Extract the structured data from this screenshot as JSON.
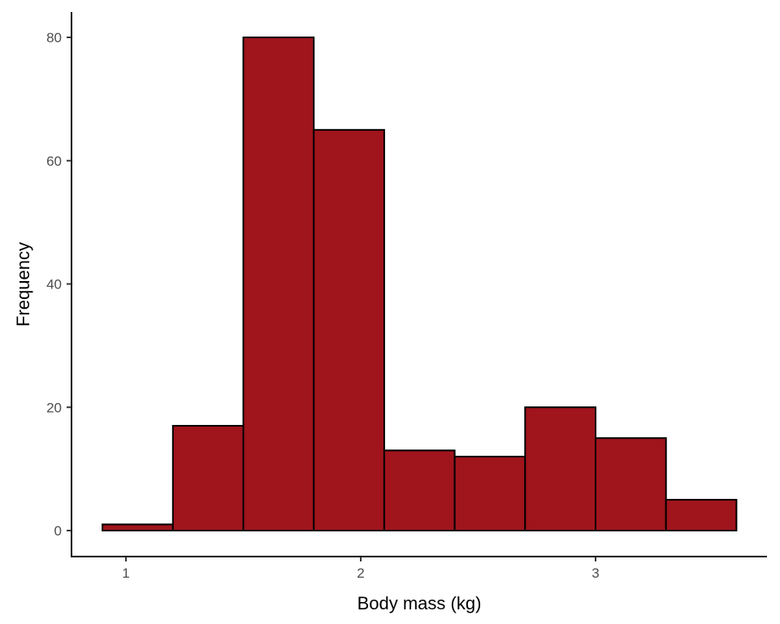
{
  "chart_data": {
    "type": "bar",
    "subtype": "histogram",
    "title": "",
    "xlabel": "Body mass (kg)",
    "ylabel": "Frequency",
    "bins": [
      {
        "start": 0.9,
        "end": 1.2,
        "count": 1
      },
      {
        "start": 1.2,
        "end": 1.5,
        "count": 17
      },
      {
        "start": 1.5,
        "end": 1.8,
        "count": 80
      },
      {
        "start": 1.8,
        "end": 2.1,
        "count": 65
      },
      {
        "start": 2.1,
        "end": 2.4,
        "count": 13
      },
      {
        "start": 2.4,
        "end": 2.7,
        "count": 12
      },
      {
        "start": 2.7,
        "end": 3.0,
        "count": 20
      },
      {
        "start": 3.0,
        "end": 3.3,
        "count": 15
      },
      {
        "start": 3.3,
        "end": 3.6,
        "count": 5
      }
    ],
    "xticks": [
      "1",
      "2",
      "3"
    ],
    "yticks": [
      "0",
      "20",
      "40",
      "60",
      "80"
    ],
    "xlim": [
      0.79,
      3.72
    ],
    "ylim": [
      -4.2,
      84.2
    ],
    "grid": false,
    "fill_color": "#A0141C",
    "edge_color": "#000000"
  }
}
